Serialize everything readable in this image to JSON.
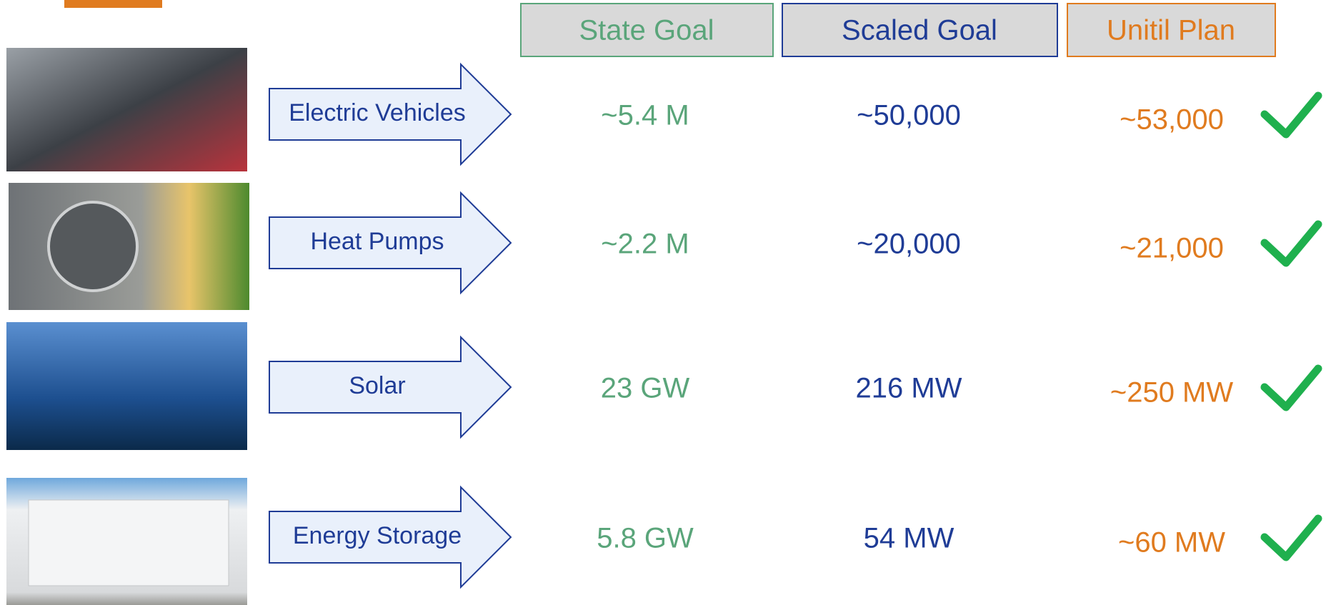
{
  "headers": [
    "State Goal",
    "Scaled Goal",
    "Unitil Plan"
  ],
  "rows": [
    {
      "label": "Electric Vehicles",
      "state_goal": "~5.4 M",
      "scaled_goal": "~50,000",
      "plan": "~53,000"
    },
    {
      "label": "Heat Pumps",
      "state_goal": "~2.2 M",
      "scaled_goal": "~20,000",
      "plan": "~21,000"
    },
    {
      "label": "Solar",
      "state_goal": "23 GW",
      "scaled_goal": "216 MW",
      "plan": "~250 MW"
    },
    {
      "label": "Energy Storage",
      "state_goal": "5.8 GW",
      "scaled_goal": "54 MW",
      "plan": "~60 MW"
    }
  ]
}
